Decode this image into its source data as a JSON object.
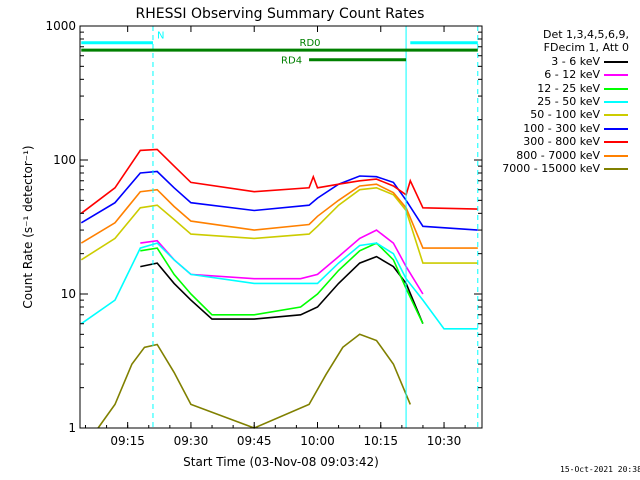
{
  "chart_data": {
    "type": "line",
    "title": "RHESSI Observing Summary Count Rates",
    "xlabel": "Start Time (03-Nov-08 09:03:42)",
    "ylabel": "Count Rate (s⁻¹ detector⁻¹)",
    "x_unit": "UT time",
    "x_range": [
      "09:03:42",
      "10:39:00"
    ],
    "x_ticks": [
      "09:15",
      "09:30",
      "09:45",
      "10:00",
      "10:15",
      "10:30"
    ],
    "y_scale": "log",
    "ylim": [
      1,
      1000
    ],
    "y_ticks": [
      "1",
      "10",
      "100",
      "1000"
    ],
    "legend_header": [
      "Det 1,3,4,5,6,9,",
      "FDecim 1, Att 0"
    ],
    "legend_placement": "right of plot",
    "series": [
      {
        "name": "3 - 6 keV",
        "color": "#000000",
        "x": [
          "09:18",
          "09:22",
          "09:26",
          "09:30",
          "09:35",
          "09:45",
          "09:56",
          "10:00",
          "10:05",
          "10:10",
          "10:14",
          "10:18",
          "10:21",
          "10:25"
        ],
        "y": [
          16,
          17,
          12,
          9,
          6.5,
          6.5,
          7,
          8,
          12,
          17,
          19,
          16,
          12,
          6
        ]
      },
      {
        "name": "6 - 12 keV",
        "color": "#ff00ff",
        "x": [
          "09:18",
          "09:22",
          "09:26",
          "09:30",
          "09:45",
          "09:56",
          "10:00",
          "10:05",
          "10:10",
          "10:14",
          "10:18",
          "10:21",
          "10:25"
        ],
        "y": [
          24,
          25,
          18,
          14,
          13,
          13,
          14,
          19,
          26,
          30,
          24,
          16,
          10
        ]
      },
      {
        "name": "12 - 25 keV",
        "color": "#00ff00",
        "x": [
          "09:18",
          "09:22",
          "09:26",
          "09:30",
          "09:35",
          "09:45",
          "09:56",
          "10:00",
          "10:05",
          "10:10",
          "10:14",
          "10:18",
          "10:21",
          "10:25"
        ],
        "y": [
          21,
          22,
          14,
          10,
          7,
          7,
          8,
          10,
          15,
          21,
          24,
          18,
          11,
          6
        ]
      },
      {
        "name": "25 - 50 keV",
        "color": "#00ffff",
        "x": [
          "09:04",
          "09:12",
          "09:18",
          "09:22",
          "09:26",
          "09:30",
          "09:45",
          "09:56",
          "10:00",
          "10:05",
          "10:10",
          "10:14",
          "10:18",
          "10:21",
          "10:25",
          "10:30",
          "10:38"
        ],
        "y": [
          6,
          9,
          22,
          24,
          18,
          14,
          12,
          12,
          12,
          17,
          23,
          24,
          20,
          13,
          9,
          5.5,
          5.5
        ]
      },
      {
        "name": "50 - 100 keV",
        "color": "#cccc00",
        "x": [
          "09:04",
          "09:12",
          "09:18",
          "09:22",
          "09:26",
          "09:30",
          "09:45",
          "09:58",
          "10:00",
          "10:05",
          "10:10",
          "10:14",
          "10:18",
          "10:21",
          "10:25",
          "10:38"
        ],
        "y": [
          18,
          26,
          44,
          46,
          36,
          28,
          26,
          28,
          32,
          46,
          60,
          62,
          55,
          42,
          17,
          17
        ]
      },
      {
        "name": "100 - 300 keV",
        "color": "#0000ff",
        "x": [
          "09:04",
          "09:12",
          "09:18",
          "09:22",
          "09:26",
          "09:30",
          "09:45",
          "09:58",
          "10:00",
          "10:05",
          "10:10",
          "10:14",
          "10:18",
          "10:21",
          "10:25",
          "10:38"
        ],
        "y": [
          34,
          48,
          80,
          82,
          62,
          48,
          42,
          46,
          52,
          66,
          76,
          75,
          68,
          50,
          32,
          30
        ]
      },
      {
        "name": "300 - 800 keV",
        "color": "#ff0000",
        "x": [
          "09:04",
          "09:12",
          "09:18",
          "09:22",
          "09:26",
          "09:30",
          "09:45",
          "09:58",
          "09:59",
          "10:00",
          "10:05",
          "10:10",
          "10:14",
          "10:18",
          "10:21",
          "10:22",
          "10:25",
          "10:38"
        ],
        "y": [
          40,
          62,
          118,
          120,
          90,
          68,
          58,
          62,
          75,
          62,
          66,
          70,
          72,
          64,
          55,
          70,
          44,
          43
        ]
      },
      {
        "name": "800 - 7000 keV",
        "color": "#ff8000",
        "x": [
          "09:04",
          "09:12",
          "09:18",
          "09:22",
          "09:26",
          "09:30",
          "09:45",
          "09:58",
          "10:00",
          "10:05",
          "10:10",
          "10:14",
          "10:18",
          "10:21",
          "10:25",
          "10:38"
        ],
        "y": [
          24,
          34,
          58,
          60,
          45,
          35,
          30,
          33,
          38,
          50,
          64,
          66,
          57,
          44,
          22,
          22
        ]
      },
      {
        "name": "7000 - 15000 keV",
        "color": "#808000",
        "x": [
          "09:08",
          "09:12",
          "09:16",
          "09:19",
          "09:22",
          "09:26",
          "09:30",
          "09:45",
          "09:58",
          "10:02",
          "10:06",
          "10:10",
          "10:14",
          "10:18",
          "10:22"
        ],
        "y": [
          1,
          1.5,
          3,
          4,
          4.2,
          2.6,
          1.5,
          1,
          1.5,
          2.5,
          4,
          5,
          4.5,
          3,
          1.5
        ]
      }
    ],
    "annotations": [
      {
        "text": "N",
        "color": "#00ffff",
        "x_start": "09:04",
        "x_end": "09:21",
        "level": 750
      },
      {
        "text": "",
        "color": "#00ffff",
        "x_start": "10:22",
        "x_end": "10:38",
        "level": 750
      },
      {
        "text": "RD0",
        "color": "#008000",
        "x_start": "09:04",
        "x_end": "10:38",
        "level": 660
      },
      {
        "text": "RD4",
        "color": "#008000",
        "x_start": "09:58",
        "x_end": "10:21",
        "level": 560
      }
    ],
    "markers": [
      {
        "x": "09:21",
        "style": "dashed",
        "color": "#00ffff"
      },
      {
        "x": "10:21",
        "style": "solid",
        "color": "#00ffff"
      },
      {
        "x": "10:38",
        "style": "dashed",
        "color": "#00ffff"
      }
    ]
  },
  "footer_timestamp": "15-Oct-2021 20:38"
}
